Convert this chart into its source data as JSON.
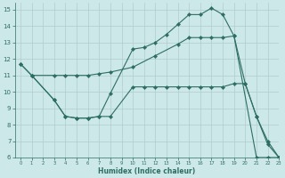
{
  "xlabel": "Humidex (Indice chaleur)",
  "xlim": [
    -0.5,
    23
  ],
  "ylim": [
    6,
    15.4
  ],
  "xticks": [
    0,
    1,
    2,
    3,
    4,
    5,
    6,
    7,
    8,
    9,
    10,
    11,
    12,
    13,
    14,
    15,
    16,
    17,
    18,
    19,
    20,
    21,
    22,
    23
  ],
  "yticks": [
    6,
    7,
    8,
    9,
    10,
    11,
    12,
    13,
    14,
    15
  ],
  "line_color": "#2d6e63",
  "bg_color": "#cde8e8",
  "grid_color": "#b0cccc",
  "line1_x": [
    0,
    1,
    3,
    4,
    5,
    6,
    7,
    8,
    10,
    11,
    12,
    13,
    14,
    15,
    16,
    17,
    18,
    19,
    20,
    21,
    22,
    23
  ],
  "line1_y": [
    11.7,
    11.0,
    9.5,
    8.5,
    8.4,
    8.4,
    8.5,
    9.9,
    12.6,
    12.7,
    13.0,
    13.5,
    14.1,
    14.7,
    14.7,
    15.1,
    14.7,
    13.4,
    10.5,
    8.5,
    7.0,
    6.0
  ],
  "line2_x": [
    1,
    3,
    4,
    5,
    6,
    7,
    8,
    10,
    11,
    12,
    13,
    14,
    15,
    16,
    17,
    18,
    19,
    20,
    21,
    22,
    23
  ],
  "line2_y": [
    11.0,
    9.5,
    8.5,
    8.4,
    8.4,
    8.5,
    8.5,
    10.3,
    10.3,
    10.3,
    10.3,
    10.3,
    10.3,
    10.3,
    10.3,
    10.3,
    10.5,
    10.5,
    8.5,
    6.8,
    6.0
  ],
  "line3_x": [
    0,
    1,
    3,
    4,
    5,
    6,
    7,
    8,
    10,
    12,
    14,
    15,
    16,
    17,
    18,
    19,
    21,
    22,
    23
  ],
  "line3_y": [
    11.7,
    11.0,
    11.0,
    11.0,
    11.0,
    11.0,
    11.1,
    11.2,
    11.5,
    12.2,
    12.9,
    13.3,
    13.3,
    13.3,
    13.3,
    13.4,
    6.0,
    6.0,
    6.0
  ]
}
